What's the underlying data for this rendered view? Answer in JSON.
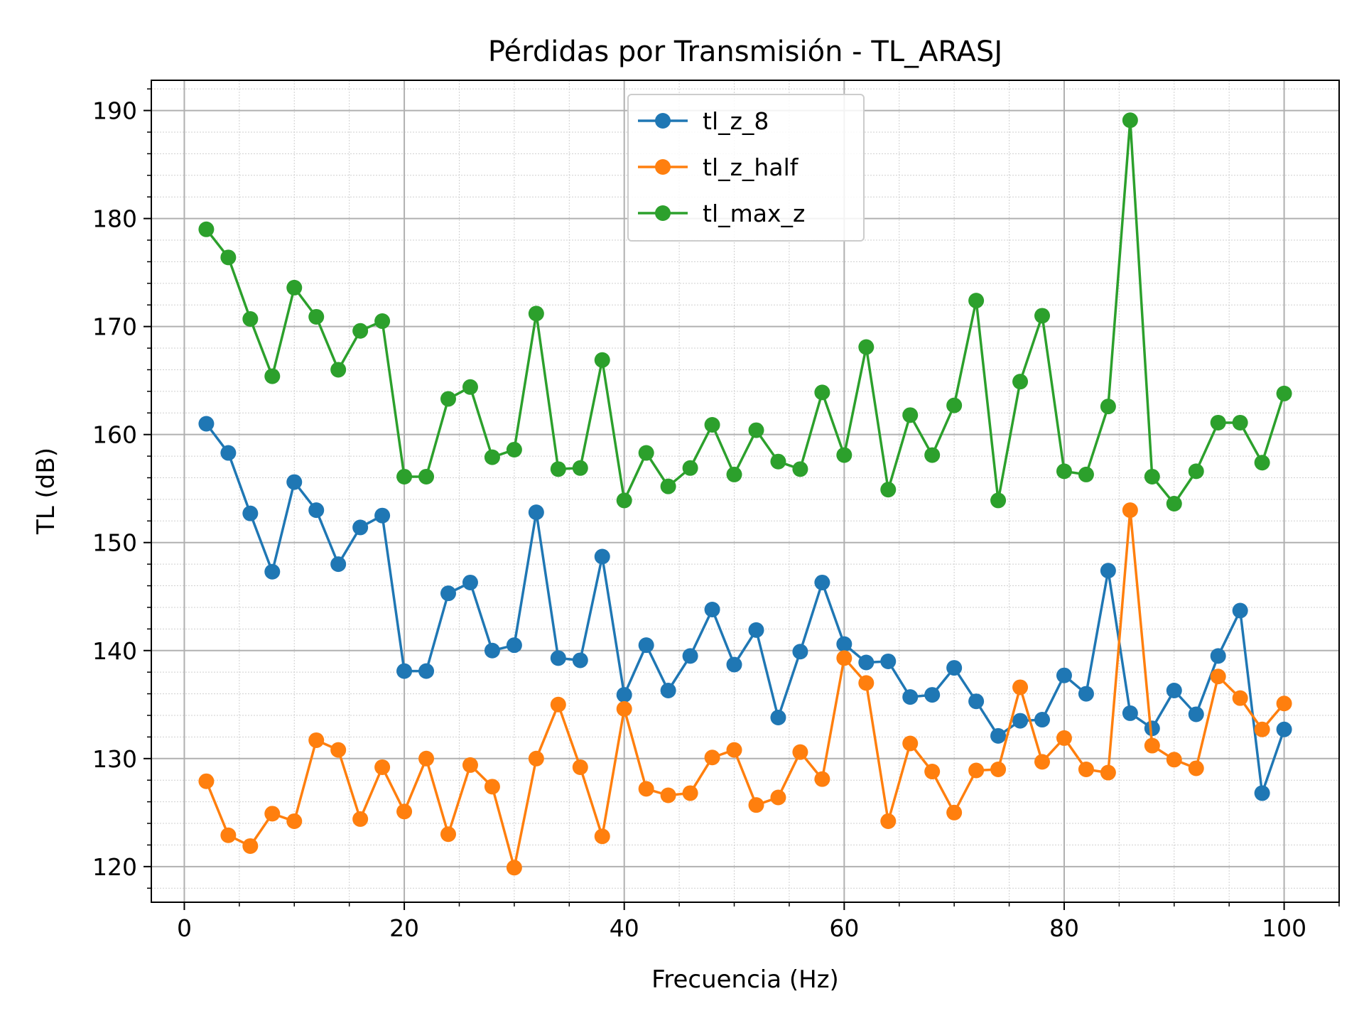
{
  "chart_data": {
    "type": "line",
    "title": "Pérdidas por Transmisión - TL_ARASJ",
    "xlabel": "Frecuencia (Hz)",
    "ylabel": "TL (dB)",
    "xlim": [
      -3,
      105
    ],
    "ylim": [
      116.7,
      192.8
    ],
    "xticks": [
      0,
      20,
      40,
      60,
      80,
      100
    ],
    "yticks": [
      120,
      130,
      140,
      150,
      160,
      170,
      180,
      190
    ],
    "grid": true,
    "minor_grid": true,
    "legend_position": "upper-center",
    "x": [
      2,
      4,
      6,
      8,
      10,
      12,
      14,
      16,
      18,
      20,
      22,
      24,
      26,
      28,
      30,
      32,
      34,
      36,
      38,
      40,
      42,
      44,
      46,
      48,
      50,
      52,
      54,
      56,
      58,
      60,
      62,
      64,
      66,
      68,
      70,
      72,
      74,
      76,
      78,
      80,
      82,
      84,
      86,
      88,
      90,
      92,
      94,
      96,
      98,
      100
    ],
    "series": [
      {
        "name": "tl_z_8",
        "color": "#1f77b4",
        "values": [
          161.0,
          158.3,
          152.7,
          147.3,
          155.6,
          153.0,
          148.0,
          151.4,
          152.5,
          138.1,
          138.1,
          145.3,
          146.3,
          140.0,
          140.5,
          152.8,
          139.3,
          139.1,
          148.7,
          135.9,
          140.5,
          136.3,
          139.5,
          143.8,
          138.7,
          141.9,
          133.8,
          139.9,
          146.3,
          140.6,
          138.9,
          139.0,
          135.7,
          135.9,
          138.4,
          135.3,
          132.1,
          133.5,
          133.6,
          137.7,
          136.0,
          147.4,
          134.2,
          132.8,
          136.3,
          134.1,
          139.5,
          143.7,
          126.8,
          132.7
        ]
      },
      {
        "name": "tl_z_half",
        "color": "#ff7f0e",
        "values": [
          127.9,
          122.9,
          121.9,
          124.9,
          124.2,
          131.7,
          130.8,
          124.4,
          129.2,
          125.1,
          130.0,
          123.0,
          129.4,
          127.4,
          119.9,
          130.0,
          135.0,
          129.2,
          122.8,
          134.6,
          127.2,
          126.6,
          126.8,
          130.1,
          130.8,
          125.7,
          126.4,
          130.6,
          128.1,
          139.3,
          137.0,
          124.2,
          131.4,
          128.8,
          125.0,
          128.9,
          129.0,
          136.6,
          129.7,
          131.9,
          129.0,
          128.7,
          153.0,
          131.2,
          129.9,
          129.1,
          137.6,
          135.6,
          132.7,
          135.1
        ]
      },
      {
        "name": "tl_max_z",
        "color": "#2ca02c",
        "values": [
          179.0,
          176.4,
          170.7,
          165.4,
          173.6,
          170.9,
          166.0,
          169.6,
          170.5,
          156.1,
          156.1,
          163.3,
          164.4,
          157.9,
          158.6,
          171.2,
          156.8,
          156.9,
          166.9,
          153.9,
          158.3,
          155.2,
          156.9,
          160.9,
          156.3,
          160.4,
          157.5,
          156.8,
          163.9,
          158.1,
          168.1,
          154.9,
          161.8,
          158.1,
          162.7,
          172.4,
          153.9,
          164.9,
          171.0,
          156.6,
          156.3,
          162.6,
          189.1,
          156.1,
          153.6,
          156.6,
          161.1,
          161.1,
          157.4,
          163.8
        ]
      }
    ]
  }
}
